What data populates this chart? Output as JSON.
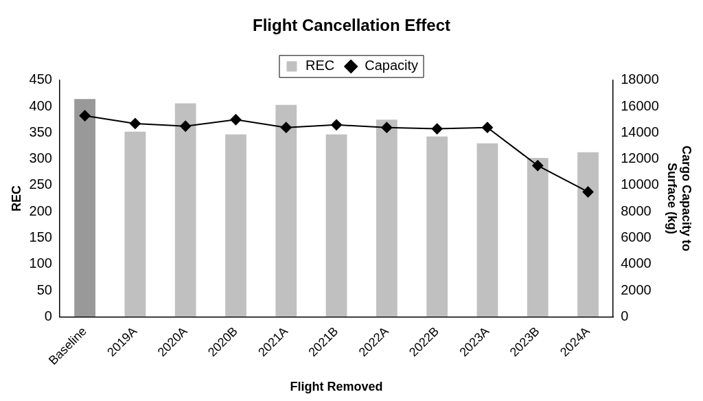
{
  "chart_data": {
    "type": "bar",
    "title": "Flight Cancellation Effect",
    "xlabel": "Flight Removed",
    "ylabel": "REC",
    "y2label": "Cargo Capacity to Surface (kg)",
    "categories": [
      "Baseline",
      "2019A",
      "2020A",
      "2020B",
      "2021A",
      "2021B",
      "2022A",
      "2022B",
      "2023A",
      "2023B",
      "2024A"
    ],
    "series": [
      {
        "name": "REC",
        "color": "#c0c0c0",
        "colors": [
          "#999999",
          "#c0c0c0",
          "#c0c0c0",
          "#c0c0c0",
          "#c0c0c0",
          "#c0c0c0",
          "#c0c0c0",
          "#c0c0c0",
          "#c0c0c0",
          "#c0c0c0",
          "#c0c0c0"
        ],
        "values": [
          414,
          352,
          406,
          347,
          403,
          347,
          375,
          343,
          330,
          302,
          313
        ]
      },
      {
        "name": "Capacity",
        "type": "line",
        "axis": "y2",
        "color": "#000000",
        "marker": "diamond",
        "values": [
          15300,
          14700,
          14500,
          15000,
          14400,
          14600,
          14400,
          14300,
          14400,
          11500,
          9500
        ]
      }
    ],
    "ylim": [
      0,
      450
    ],
    "yticks": [
      0,
      50,
      100,
      150,
      200,
      250,
      300,
      350,
      400,
      450
    ],
    "y2lim": [
      0,
      18000
    ],
    "y2ticks": [
      0,
      2000,
      4000,
      6000,
      8000,
      10000,
      12000,
      14000,
      16000,
      18000
    ],
    "grid": false,
    "legend": "top"
  }
}
